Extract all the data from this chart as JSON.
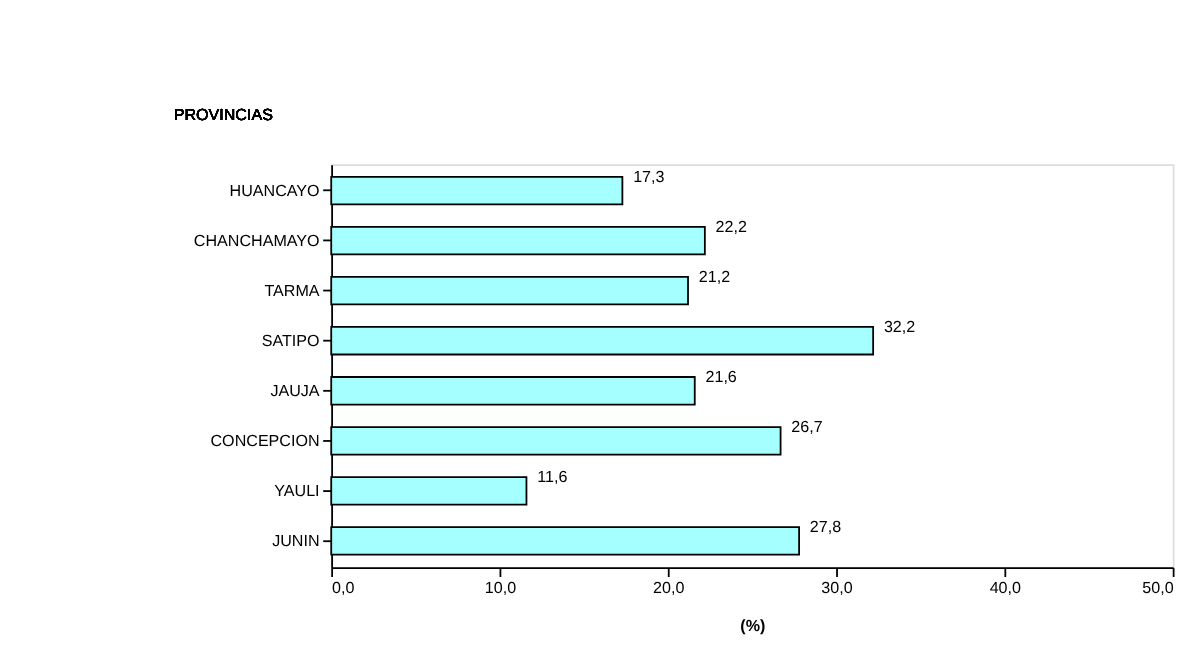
{
  "chart_data": {
    "type": "bar",
    "orientation": "horizontal",
    "ylabel": "PROVINCIAS",
    "xlabel": "(%)",
    "categories": [
      "HUANCAYO",
      "CHANCHAMAYO",
      "TARMA",
      "SATIPO",
      "JAUJA",
      "CONCEPCION",
      "YAULI",
      "JUNIN"
    ],
    "values": [
      17.3,
      22.2,
      21.2,
      32.2,
      21.6,
      26.7,
      11.6,
      27.8
    ],
    "value_labels": [
      "17,3",
      "22,2",
      "21,2",
      "32,2",
      "21,6",
      "26,7",
      "11,6",
      "27,8"
    ],
    "color": "#a6ffff",
    "xlim": [
      0,
      50
    ],
    "xticks": [
      {
        "value": 0,
        "label": "0,0"
      },
      {
        "value": 10,
        "label": "10,0"
      },
      {
        "value": 20,
        "label": "20,0"
      },
      {
        "value": 30,
        "label": "30,0"
      },
      {
        "value": 40,
        "label": "40,0"
      },
      {
        "value": 50,
        "label": "50,0"
      }
    ],
    "grid": false
  }
}
